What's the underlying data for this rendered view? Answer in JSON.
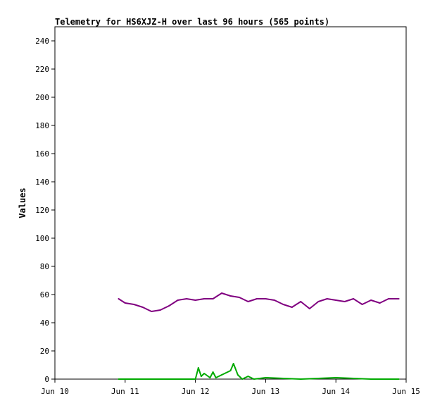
{
  "chart_data": {
    "type": "line",
    "title": "Telemetry for HS6XJZ-H over last 96 hours (565 points)",
    "xlabel": "",
    "ylabel": "Values",
    "xlim": [
      "2024-06-10T00:00",
      "2024-06-15T00:00"
    ],
    "ylim": [
      0,
      250
    ],
    "x_ticks": [
      {
        "label": "Jun 10",
        "at": "2024-06-10T00:00"
      },
      {
        "label": "Jun 11",
        "at": "2024-06-11T00:00"
      },
      {
        "label": "Jun 12",
        "at": "2024-06-12T00:00"
      },
      {
        "label": "Jun 13",
        "at": "2024-06-13T00:00"
      },
      {
        "label": "Jun 14",
        "at": "2024-06-14T00:00"
      },
      {
        "label": "Jun 15",
        "at": "2024-06-15T00:00"
      }
    ],
    "y_ticks": [
      0,
      20,
      40,
      60,
      80,
      100,
      120,
      140,
      160,
      180,
      200,
      220,
      240
    ],
    "grid": false,
    "legend": "none",
    "series": [
      {
        "color": "#800080",
        "x": [
          "2024-06-10T21:45",
          "2024-06-11T00:00",
          "2024-06-11T03:00",
          "2024-06-11T06:00",
          "2024-06-11T09:00",
          "2024-06-11T12:00",
          "2024-06-11T15:00",
          "2024-06-11T18:00",
          "2024-06-11T21:00",
          "2024-06-12T00:00",
          "2024-06-12T03:00",
          "2024-06-12T06:00",
          "2024-06-12T09:00",
          "2024-06-12T12:00",
          "2024-06-12T15:00",
          "2024-06-12T18:00",
          "2024-06-12T21:00",
          "2024-06-13T00:00",
          "2024-06-13T03:00",
          "2024-06-13T06:00",
          "2024-06-13T09:00",
          "2024-06-13T12:00",
          "2024-06-13T15:00",
          "2024-06-13T18:00",
          "2024-06-13T21:00",
          "2024-06-14T00:00",
          "2024-06-14T03:00",
          "2024-06-14T06:00",
          "2024-06-14T09:00",
          "2024-06-14T12:00",
          "2024-06-14T15:00",
          "2024-06-14T18:00",
          "2024-06-14T21:30"
        ],
        "values": [
          57,
          54,
          53,
          51,
          48,
          49,
          52,
          56,
          57,
          56,
          57,
          57,
          61,
          59,
          58,
          55,
          57,
          57,
          56,
          53,
          51,
          55,
          50,
          55,
          57,
          56,
          55,
          57,
          53,
          56,
          54,
          57,
          57
        ]
      },
      {
        "color": "#00aa00",
        "x": [
          "2024-06-10T21:45",
          "2024-06-11T12:00",
          "2024-06-12T00:00",
          "2024-06-12T01:00",
          "2024-06-12T02:00",
          "2024-06-12T03:00",
          "2024-06-12T05:00",
          "2024-06-12T06:00",
          "2024-06-12T07:00",
          "2024-06-12T09:00",
          "2024-06-12T12:00",
          "2024-06-12T13:00",
          "2024-06-12T14:30",
          "2024-06-12T16:00",
          "2024-06-12T18:00",
          "2024-06-12T20:00",
          "2024-06-13T00:00",
          "2024-06-13T12:00",
          "2024-06-14T00:00",
          "2024-06-14T12:00",
          "2024-06-14T21:30"
        ],
        "values": [
          0,
          0,
          0,
          8,
          2,
          4,
          1,
          5,
          1,
          3,
          6,
          11,
          3,
          0,
          2,
          0,
          1,
          0,
          1,
          0,
          0
        ]
      }
    ]
  }
}
